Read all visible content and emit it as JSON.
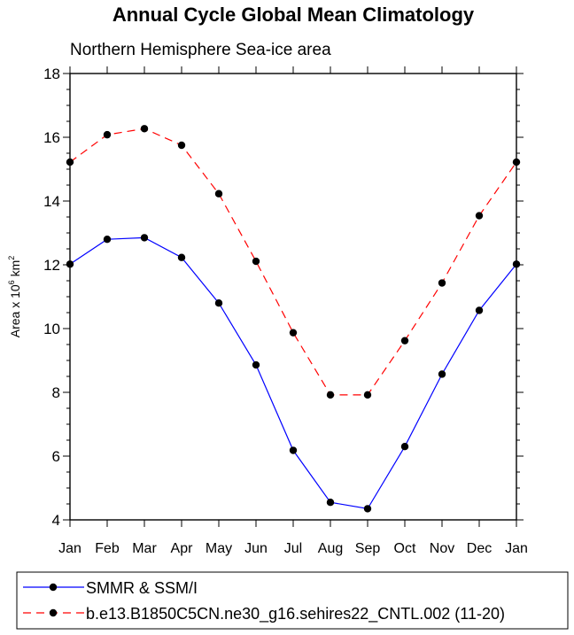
{
  "chart_data": {
    "type": "line",
    "title": "Annual Cycle Global Mean Climatology",
    "subtitle": "Northern Hemisphere Sea-ice area",
    "ylabel_main": "Area x 10",
    "ylabel_exp1": "6",
    "ylabel_unit": " km",
    "ylabel_exp2": "2",
    "categories": [
      "Jan",
      "Feb",
      "Mar",
      "Apr",
      "May",
      "Jun",
      "Jul",
      "Aug",
      "Sep",
      "Oct",
      "Nov",
      "Dec",
      "Jan"
    ],
    "ylim": [
      4,
      18
    ],
    "yticks": [
      4,
      6,
      8,
      10,
      12,
      14,
      16,
      18
    ],
    "ytick_labels": [
      "4",
      "6",
      "8",
      "10",
      "12",
      "14",
      "16",
      "18"
    ],
    "grid": false,
    "legend_position": "bottom",
    "series": [
      {
        "name": "SMMR & SSM/I",
        "color": "#0000ff",
        "dash": "solid",
        "values": [
          12.02,
          12.8,
          12.85,
          12.23,
          10.8,
          8.86,
          6.18,
          4.55,
          4.35,
          6.3,
          8.57,
          10.57,
          12.02
        ]
      },
      {
        "name": "b.e13.B1850C5CN.ne30_g16.sehires22_CNTL.002 (11-20)",
        "color": "#ff0000",
        "dash": "dashed",
        "values": [
          15.22,
          16.08,
          16.27,
          15.75,
          14.23,
          12.11,
          9.87,
          7.92,
          7.92,
          9.62,
          11.43,
          13.54,
          15.22
        ]
      }
    ]
  }
}
